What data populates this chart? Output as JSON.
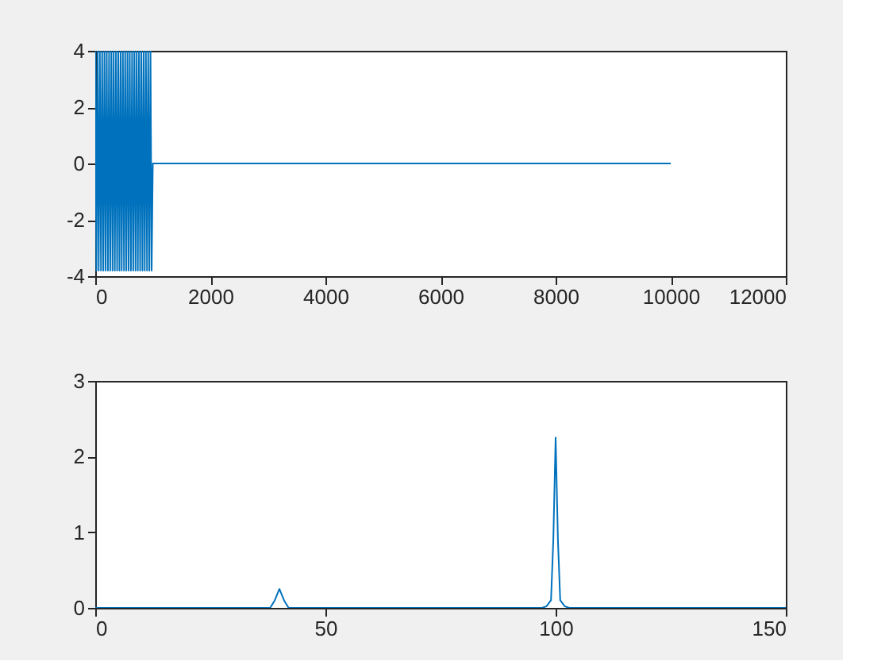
{
  "chart_data": [
    {
      "type": "line",
      "x": [
        0,
        20,
        40,
        60,
        80,
        100,
        120,
        140,
        160,
        180,
        200,
        220,
        240,
        260,
        280,
        300,
        320,
        340,
        360,
        380,
        400,
        420,
        440,
        460,
        480,
        500,
        520,
        540,
        560,
        580,
        600,
        620,
        640,
        660,
        680,
        700,
        720,
        740,
        760,
        780,
        800,
        820,
        840,
        860,
        880,
        900,
        920,
        940,
        960,
        980,
        1000,
        10000
      ],
      "series": [
        {
          "color": "#0072bd",
          "values": [
            4,
            -3.8,
            4,
            -3.8,
            4,
            -3.8,
            4,
            -3.8,
            4,
            -3.8,
            4,
            -3.8,
            4,
            -3.8,
            4,
            -3.8,
            4,
            -3.8,
            4,
            -3.8,
            4,
            -3.8,
            4,
            -3.8,
            4,
            -3.8,
            4,
            -3.8,
            4,
            -3.8,
            4,
            -3.8,
            4,
            -3.8,
            4,
            -3.8,
            4,
            -3.8,
            4,
            -3.8,
            4,
            -3.8,
            4,
            -3.8,
            4,
            -3.8,
            4,
            -3.8,
            4,
            -3.8,
            0,
            0
          ]
        }
      ],
      "xlim": [
        0,
        12000
      ],
      "xticks": [
        0,
        2000,
        4000,
        6000,
        8000,
        10000,
        12000
      ],
      "ylim": [
        -4,
        4
      ],
      "yticks": [
        -4,
        -2,
        0,
        2,
        4
      ],
      "grid": false,
      "legend": false
    },
    {
      "type": "line",
      "x": [
        0,
        37,
        38,
        39,
        40,
        41,
        42,
        43,
        96,
        97,
        98,
        99,
        99.5,
        100,
        100.5,
        101,
        102,
        103,
        104,
        150
      ],
      "series": [
        {
          "color": "#0072bd",
          "values": [
            0,
            0,
            0,
            0.1,
            0.25,
            0.1,
            0,
            0,
            0,
            0,
            0.02,
            0.1,
            0.9,
            2.25,
            0.9,
            0.1,
            0.02,
            0,
            0,
            0
          ]
        }
      ],
      "xlim": [
        0,
        150
      ],
      "xticks": [
        0,
        50,
        100,
        150
      ],
      "ylim": [
        0,
        3
      ],
      "yticks": [
        0,
        1,
        2,
        3
      ],
      "grid": false,
      "legend": false
    }
  ]
}
